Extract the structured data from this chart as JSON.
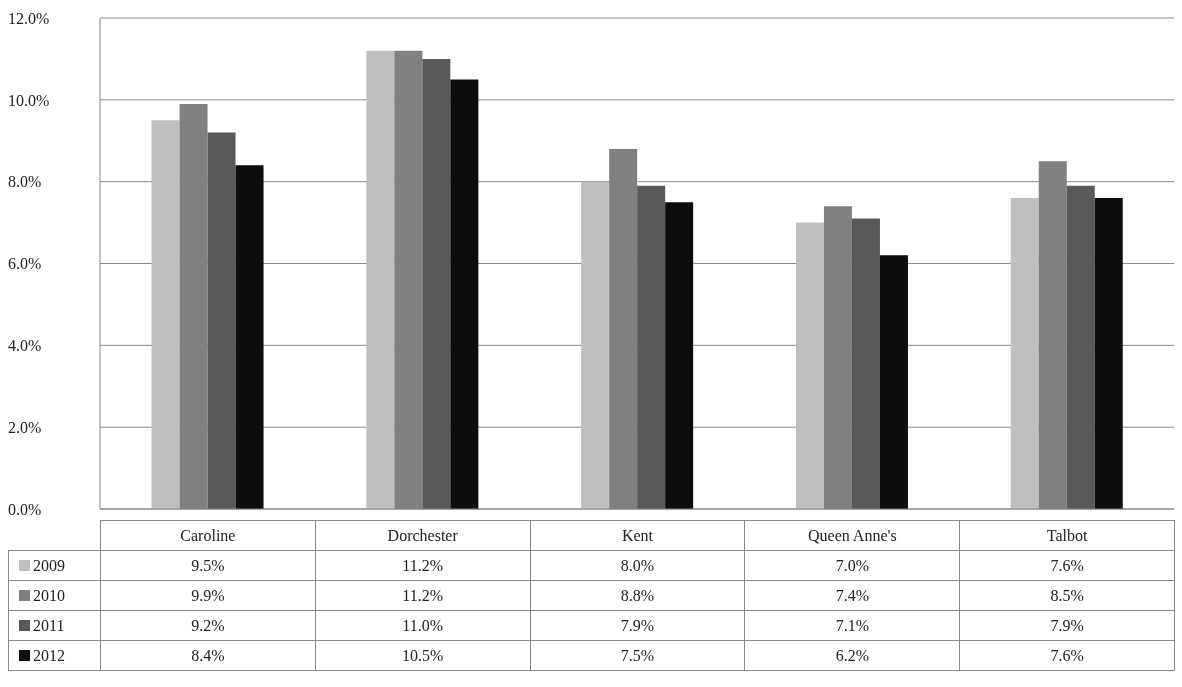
{
  "chart_data": {
    "type": "bar",
    "categories": [
      "Caroline",
      "Dorchester",
      "Kent",
      "Queen Anne's",
      "Talbot"
    ],
    "series": [
      {
        "name": "2009",
        "color": "#bfbfbf",
        "values": [
          9.5,
          11.2,
          8.0,
          7.0,
          7.6
        ],
        "value_labels": [
          "9.5%",
          "11.2%",
          "8.0%",
          "7.0%",
          "7.6%"
        ]
      },
      {
        "name": "2010",
        "color": "#808080",
        "values": [
          9.9,
          11.2,
          8.8,
          7.4,
          8.5
        ],
        "value_labels": [
          "9.9%",
          "11.2%",
          "8.8%",
          "7.4%",
          "8.5%"
        ]
      },
      {
        "name": "2011",
        "color": "#595959",
        "values": [
          9.2,
          11.0,
          7.9,
          7.1,
          7.9
        ],
        "value_labels": [
          "9.2%",
          "11.0%",
          "7.9%",
          "7.1%",
          "7.9%"
        ]
      },
      {
        "name": "2012",
        "color": "#0d0d0d",
        "values": [
          8.4,
          10.5,
          7.5,
          6.2,
          7.6
        ],
        "value_labels": [
          "8.4%",
          "10.5%",
          "7.5%",
          "6.2%",
          "7.6%"
        ]
      }
    ],
    "ylim": [
      0,
      12
    ],
    "yticks": [
      {
        "value": 0,
        "label": "0.0%"
      },
      {
        "value": 2,
        "label": "2.0%"
      },
      {
        "value": 4,
        "label": "4.0%"
      },
      {
        "value": 6,
        "label": "6.0%"
      },
      {
        "value": 8,
        "label": "8.0%"
      },
      {
        "value": 10,
        "label": "10.0%"
      },
      {
        "value": 12,
        "label": "12.0%"
      }
    ],
    "grid": "y",
    "legend": "bottom"
  }
}
